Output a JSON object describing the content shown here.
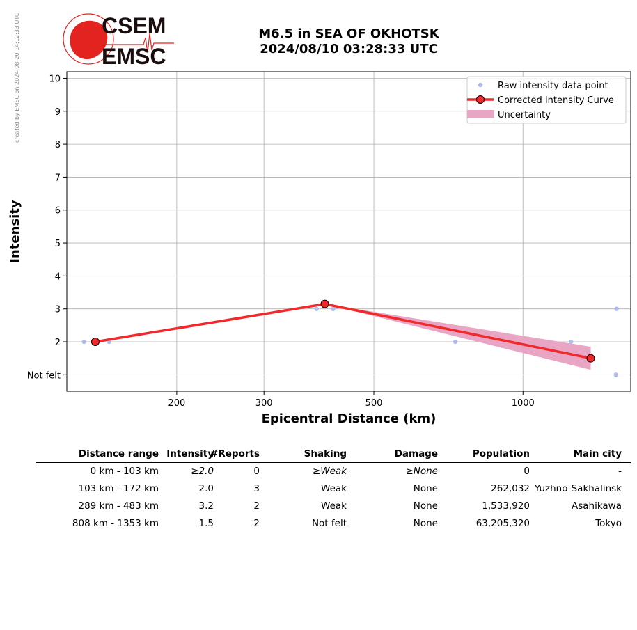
{
  "credit": "created by EMSC on 2024-08-20 14:12:33 UTC",
  "logo": {
    "text_top": "CSEM",
    "text_bottom": "EMSC",
    "color_red": "#e3231f",
    "color_dark": "#1a0d0d"
  },
  "title": {
    "line1": "M6.5 in SEA OF OKHOTSK",
    "line2": "2024/08/10 03:28:33 UTC"
  },
  "chart_data": {
    "type": "line",
    "xlabel": "Epicentral Distance (km)",
    "ylabel": "Intensity",
    "xscale": "log",
    "xlim": [
      120,
      1650
    ],
    "ylim": [
      0.5,
      10.2
    ],
    "xticks": [
      200,
      300,
      500,
      1000
    ],
    "xtick_labels": [
      "200",
      "300",
      "500",
      "1000"
    ],
    "yticks": [
      1,
      2,
      3,
      4,
      5,
      6,
      7,
      8,
      9,
      10
    ],
    "ytick_labels": [
      "Not felt",
      "2",
      "3",
      "4",
      "5",
      "6",
      "7",
      "8",
      "9",
      "10"
    ],
    "grid": true,
    "legend_position": "top-right",
    "legend": [
      "Raw intensity data point",
      "Corrected Intensity Curve",
      "Uncertainty"
    ],
    "colors": {
      "raw": "#b0bde8",
      "curve": "#f2292a",
      "uncertainty": "#e9a6c4"
    },
    "raw_points": [
      {
        "x": 130,
        "y": 2
      },
      {
        "x": 136,
        "y": 2
      },
      {
        "x": 146,
        "y": 2
      },
      {
        "x": 383,
        "y": 3
      },
      {
        "x": 414,
        "y": 3
      },
      {
        "x": 730,
        "y": 2
      },
      {
        "x": 1250,
        "y": 2
      },
      {
        "x": 1540,
        "y": 1
      },
      {
        "x": 1545,
        "y": 3
      }
    ],
    "curve": [
      {
        "x": 137,
        "y": 2.0
      },
      {
        "x": 398,
        "y": 3.15
      },
      {
        "x": 1370,
        "y": 1.5
      }
    ],
    "uncertainty": {
      "x": [
        398,
        1370
      ],
      "lower": [
        3.15,
        1.15
      ],
      "upper": [
        3.15,
        1.85
      ]
    }
  },
  "table": {
    "headers": [
      "Distance range",
      "Intensity",
      "#Reports",
      "Shaking",
      "Damage",
      "Population",
      "Main city"
    ],
    "rows": [
      [
        "0 km -  103 km",
        "≥2.0",
        "0",
        "≥Weak",
        "≥None",
        "0",
        "-"
      ],
      [
        "103 km -  172 km",
        "2.0",
        "3",
        "Weak",
        "None",
        "262,032",
        "Yuzhno-Sakhalinsk"
      ],
      [
        "289 km -  483 km",
        "3.2",
        "2",
        "Weak",
        "None",
        "1,533,920",
        "Asahikawa"
      ],
      [
        "808 km - 1353 km",
        "1.5",
        "2",
        "Not felt",
        "None",
        "63,205,320",
        "Tokyo"
      ]
    ],
    "italic_row": 0
  }
}
